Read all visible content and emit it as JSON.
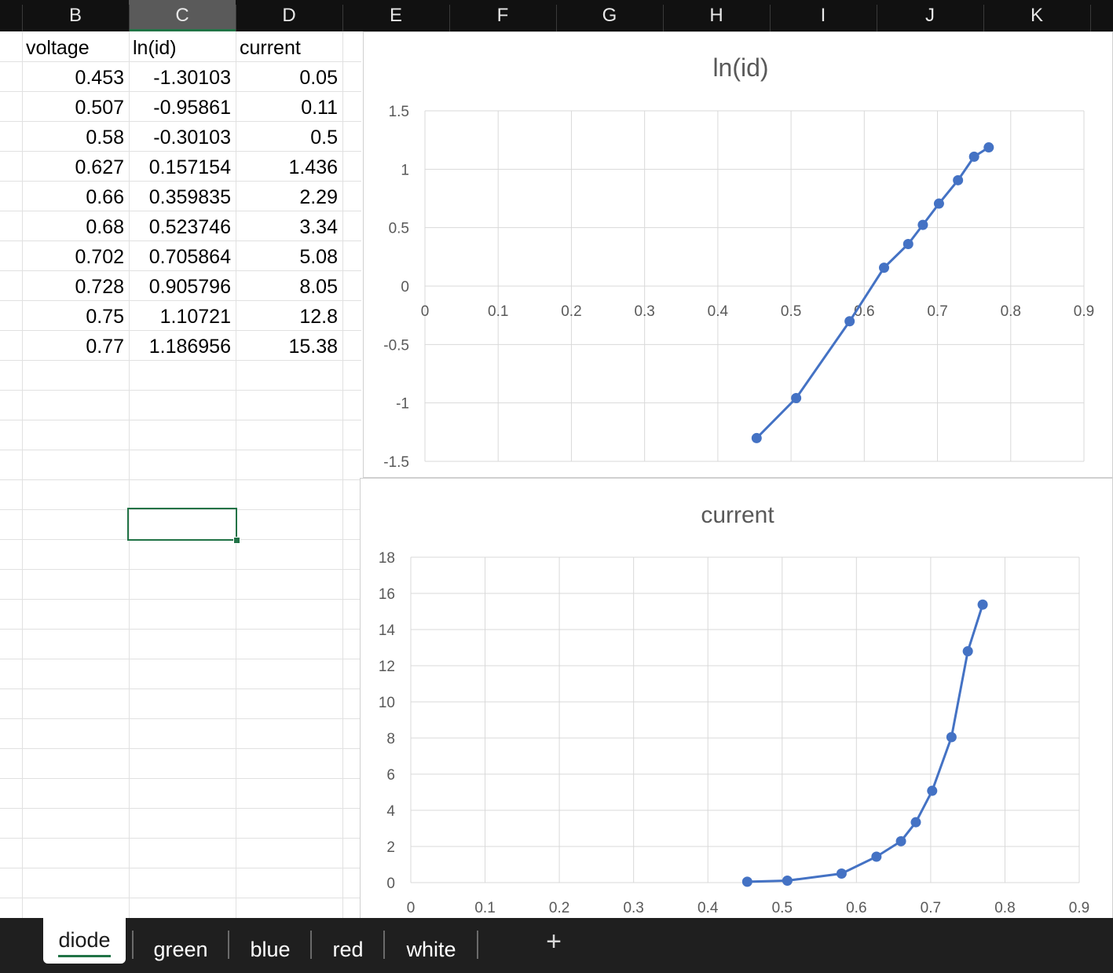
{
  "columns": [
    "B",
    "C",
    "D",
    "E",
    "F",
    "G",
    "H",
    "I",
    "J",
    "K"
  ],
  "selected_column": "C",
  "table": {
    "headers": [
      "voltage",
      "ln(id)",
      "current"
    ],
    "rows": [
      [
        "0.453",
        "-1.30103",
        "0.05"
      ],
      [
        "0.507",
        "-0.95861",
        "0.11"
      ],
      [
        "0.58",
        "-0.30103",
        "0.5"
      ],
      [
        "0.627",
        "0.157154",
        "1.436"
      ],
      [
        "0.66",
        "0.359835",
        "2.29"
      ],
      [
        "0.68",
        "0.523746",
        "3.34"
      ],
      [
        "0.702",
        "0.705864",
        "5.08"
      ],
      [
        "0.728",
        "0.905796",
        "8.05"
      ],
      [
        "0.75",
        "1.10721",
        "12.8"
      ],
      [
        "0.77",
        "1.186956",
        "15.38"
      ]
    ]
  },
  "chart_data": [
    {
      "type": "scatter",
      "title": "ln(id)",
      "x": [
        0.453,
        0.507,
        0.58,
        0.627,
        0.66,
        0.68,
        0.702,
        0.728,
        0.75,
        0.77
      ],
      "y": [
        -1.30103,
        -0.95861,
        -0.30103,
        0.157154,
        0.359835,
        0.523746,
        0.705864,
        0.905796,
        1.10721,
        1.186956
      ],
      "xlim": [
        0,
        0.9
      ],
      "ylim": [
        -1.5,
        1.5
      ],
      "x_ticks": [
        "0",
        "0.1",
        "0.2",
        "0.3",
        "0.4",
        "0.5",
        "0.6",
        "0.7",
        "0.8",
        "0.9"
      ],
      "y_ticks": [
        "1.5",
        "1",
        "0.5",
        "0",
        "-0.5",
        "-1",
        "-1.5"
      ],
      "grid": true,
      "series_color": "#4472C4",
      "lines": true,
      "markers": true
    },
    {
      "type": "scatter",
      "title": "current",
      "x": [
        0.453,
        0.507,
        0.58,
        0.627,
        0.66,
        0.68,
        0.702,
        0.728,
        0.75,
        0.77
      ],
      "y": [
        0.05,
        0.11,
        0.5,
        1.436,
        2.29,
        3.34,
        5.08,
        8.05,
        12.8,
        15.38
      ],
      "xlim": [
        0,
        0.9
      ],
      "ylim": [
        0,
        18
      ],
      "x_ticks": [
        "0",
        "0.1",
        "0.2",
        "0.3",
        "0.4",
        "0.5",
        "0.6",
        "0.7",
        "0.8",
        "0.9"
      ],
      "y_ticks": [
        "18",
        "16",
        "14",
        "12",
        "10",
        "8",
        "6",
        "4",
        "2",
        "0"
      ],
      "grid": true,
      "series_color": "#4472C4",
      "lines": true,
      "markers": true
    }
  ],
  "sheet_tabs": [
    "diode",
    "green",
    "blue",
    "red",
    "white"
  ],
  "active_tab": "diode",
  "add_sheet_icon": "plus-icon",
  "colors": {
    "accent": "#217346",
    "series": "#4472C4"
  }
}
